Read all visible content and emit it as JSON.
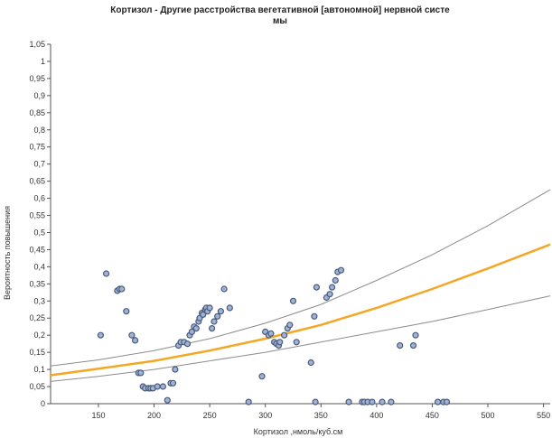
{
  "chart_data": {
    "type": "scatter",
    "title": "Кортизол - Другие расстройства вегетативной [автономной] нервной систе\nмы",
    "xlabel": "Кортизол ,нмоль/куб.см",
    "ylabel": "Вероятность повышения",
    "xlim": [
      107,
      556
    ],
    "ylim": [
      0,
      1.05
    ],
    "x_ticks": [
      "150",
      "200",
      "250",
      "300",
      "350",
      "400",
      "450",
      "500",
      "550"
    ],
    "x_tick_values": [
      150,
      200,
      250,
      300,
      350,
      400,
      450,
      500,
      550
    ],
    "y_ticks": [
      "0",
      "0,05",
      "0,1",
      "0,15",
      "0,2",
      "0,25",
      "0,3",
      "0,35",
      "0,4",
      "0,45",
      "0,5",
      "0,55",
      "0,6",
      "0,65",
      "0,7",
      "0,75",
      "0,8",
      "0,85",
      "0,9",
      "0,95",
      "1",
      "1,05"
    ],
    "y_tick_values": [
      0,
      0.05,
      0.1,
      0.15,
      0.2,
      0.25,
      0.3,
      0.35,
      0.4,
      0.45,
      0.5,
      0.55,
      0.6,
      0.65,
      0.7,
      0.75,
      0.8,
      0.85,
      0.9,
      0.95,
      1.0,
      1.05
    ],
    "grid": false,
    "colors": {
      "fit": "#f5a623",
      "bounds": "#8c8c8c",
      "points": "#4a5a7a",
      "axis": "#555555"
    },
    "series": [
      {
        "kind": "line",
        "role": "upper-bound",
        "x": [
          107,
          150,
          200,
          250,
          300,
          350,
          400,
          450,
          500,
          556
        ],
        "y": [
          0.11,
          0.128,
          0.155,
          0.19,
          0.235,
          0.29,
          0.36,
          0.435,
          0.52,
          0.625
        ]
      },
      {
        "kind": "line",
        "role": "fit",
        "x": [
          107,
          150,
          200,
          250,
          300,
          350,
          400,
          450,
          500,
          556
        ],
        "y": [
          0.083,
          0.102,
          0.125,
          0.155,
          0.19,
          0.23,
          0.28,
          0.335,
          0.395,
          0.465
        ]
      },
      {
        "kind": "line",
        "role": "lower-bound",
        "x": [
          107,
          150,
          200,
          250,
          300,
          350,
          400,
          450,
          500,
          556
        ],
        "y": [
          0.065,
          0.08,
          0.1,
          0.125,
          0.15,
          0.18,
          0.21,
          0.24,
          0.275,
          0.315
        ]
      },
      {
        "kind": "points",
        "role": "observations",
        "points": [
          [
            152,
            0.2
          ],
          [
            157,
            0.38
          ],
          [
            167,
            0.33
          ],
          [
            169,
            0.335
          ],
          [
            171,
            0.335
          ],
          [
            175,
            0.27
          ],
          [
            180,
            0.2
          ],
          [
            183,
            0.185
          ],
          [
            186,
            0.09
          ],
          [
            188,
            0.09
          ],
          [
            190,
            0.05
          ],
          [
            192,
            0.045
          ],
          [
            195,
            0.045
          ],
          [
            197,
            0.045
          ],
          [
            199,
            0.045
          ],
          [
            203,
            0.05
          ],
          [
            208,
            0.05
          ],
          [
            212,
            0.01
          ],
          [
            215,
            0.06
          ],
          [
            217,
            0.06
          ],
          [
            219,
            0.1
          ],
          [
            222,
            0.17
          ],
          [
            224,
            0.18
          ],
          [
            227,
            0.18
          ],
          [
            230,
            0.175
          ],
          [
            232,
            0.2
          ],
          [
            234,
            0.21
          ],
          [
            236,
            0.225
          ],
          [
            238,
            0.22
          ],
          [
            240,
            0.24
          ],
          [
            241,
            0.25
          ],
          [
            243,
            0.265
          ],
          [
            244,
            0.26
          ],
          [
            246,
            0.275
          ],
          [
            247,
            0.28
          ],
          [
            248,
            0.27
          ],
          [
            250,
            0.28
          ],
          [
            252,
            0.22
          ],
          [
            254,
            0.24
          ],
          [
            257,
            0.255
          ],
          [
            260,
            0.27
          ],
          [
            263,
            0.335
          ],
          [
            268,
            0.28
          ],
          [
            285,
            0.005
          ],
          [
            297,
            0.08
          ],
          [
            300,
            0.21
          ],
          [
            303,
            0.2
          ],
          [
            305,
            0.205
          ],
          [
            308,
            0.18
          ],
          [
            310,
            0.175
          ],
          [
            312,
            0.17
          ],
          [
            313,
            0.18
          ],
          [
            317,
            0.2
          ],
          [
            320,
            0.22
          ],
          [
            322,
            0.23
          ],
          [
            325,
            0.3
          ],
          [
            328,
            0.18
          ],
          [
            341,
            0.12
          ],
          [
            344,
            0.255
          ],
          [
            346,
            0.34
          ],
          [
            355,
            0.31
          ],
          [
            358,
            0.32
          ],
          [
            360,
            0.34
          ],
          [
            363,
            0.36
          ],
          [
            365,
            0.385
          ],
          [
            368,
            0.39
          ],
          [
            345,
            0.005
          ],
          [
            375,
            0.005
          ],
          [
            387,
            0.005
          ],
          [
            389,
            0.005
          ],
          [
            392,
            0.005
          ],
          [
            396,
            0.005
          ],
          [
            405,
            0.005
          ],
          [
            413,
            0.005
          ],
          [
            421,
            0.17
          ],
          [
            433,
            0.17
          ],
          [
            435,
            0.2
          ],
          [
            455,
            0.005
          ],
          [
            460,
            0.005
          ],
          [
            463,
            0.005
          ]
        ]
      }
    ]
  }
}
